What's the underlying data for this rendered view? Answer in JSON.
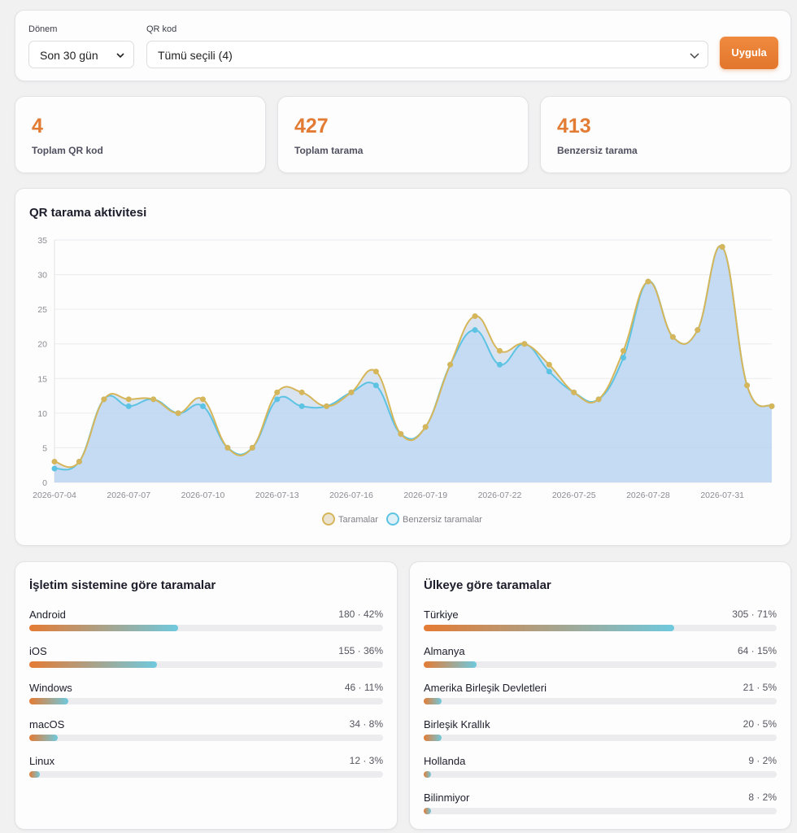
{
  "filters": {
    "period_label": "Dönem",
    "period_value": "Son 30 gün",
    "qr_label": "QR kod",
    "qr_value": "Tümü seçili (4)",
    "apply_label": "Uygula"
  },
  "stats": [
    {
      "value": "4",
      "label": "Toplam QR kod"
    },
    {
      "value": "427",
      "label": "Toplam tarama"
    },
    {
      "value": "413",
      "label": "Benzersiz tarama"
    }
  ],
  "chart": {
    "title": "QR tarama aktivitesi",
    "legend": [
      "Taramalar",
      "Benzersiz taramalar"
    ]
  },
  "chart_data": {
    "type": "area",
    "x": [
      "2026-07-04",
      "2026-07-05",
      "2026-07-06",
      "2026-07-07",
      "2026-07-08",
      "2026-07-09",
      "2026-07-10",
      "2026-07-11",
      "2026-07-12",
      "2026-07-13",
      "2026-07-14",
      "2026-07-15",
      "2026-07-16",
      "2026-07-17",
      "2026-07-18",
      "2026-07-19",
      "2026-07-20",
      "2026-07-21",
      "2026-07-22",
      "2026-07-23",
      "2026-07-24",
      "2026-07-25",
      "2026-07-26",
      "2026-07-27",
      "2026-07-28",
      "2026-07-29",
      "2026-07-30",
      "2026-07-31",
      "2026-08-01",
      "2026-08-02"
    ],
    "x_tick_labels": [
      "2026-07-04",
      "2026-07-07",
      "2026-07-10",
      "2026-07-13",
      "2026-07-16",
      "2026-07-19",
      "2026-07-22",
      "2026-07-25",
      "2026-07-28",
      "2026-07-31"
    ],
    "series": [
      {
        "name": "Taramalar",
        "color": "#d6b65a",
        "values": [
          3,
          3,
          12,
          12,
          12,
          10,
          12,
          5,
          5,
          13,
          13,
          11,
          13,
          16,
          7,
          8,
          17,
          24,
          19,
          20,
          17,
          13,
          12,
          19,
          29,
          21,
          22,
          34,
          14,
          11
        ]
      },
      {
        "name": "Benzersiz taramalar",
        "color": "#5dc3e3",
        "values": [
          2,
          3,
          12,
          11,
          12,
          10,
          11,
          5,
          5,
          12,
          11,
          11,
          13,
          14,
          7,
          8,
          17,
          22,
          17,
          20,
          16,
          13,
          12,
          18,
          29,
          21,
          22,
          34,
          14,
          11
        ]
      }
    ],
    "ylim": [
      0,
      35
    ],
    "y_ticks": [
      0,
      5,
      10,
      15,
      20,
      25,
      30,
      35
    ],
    "grid": true,
    "legend_position": "bottom"
  },
  "os_card": {
    "title": "İşletim sistemine göre taramalar",
    "items": [
      {
        "name": "Android",
        "count": "180 · 42%",
        "pct": 42
      },
      {
        "name": "iOS",
        "count": "155 · 36%",
        "pct": 36
      },
      {
        "name": "Windows",
        "count": "46 · 11%",
        "pct": 11
      },
      {
        "name": "macOS",
        "count": "34 · 8%",
        "pct": 8
      },
      {
        "name": "Linux",
        "count": "12 · 3%",
        "pct": 3
      }
    ]
  },
  "country_card": {
    "title": "Ülkeye göre taramalar",
    "items": [
      {
        "name": "Türkiye",
        "count": "305 · 71%",
        "pct": 71
      },
      {
        "name": "Almanya",
        "count": "64 · 15%",
        "pct": 15
      },
      {
        "name": "Amerika Birleşik Devletleri",
        "count": "21 · 5%",
        "pct": 5
      },
      {
        "name": "Birleşik Krallık",
        "count": "20 · 5%",
        "pct": 5
      },
      {
        "name": "Hollanda",
        "count": "9 · 2%",
        "pct": 2
      },
      {
        "name": "Bilinmiyor",
        "count": "8 · 2%",
        "pct": 2
      }
    ]
  }
}
